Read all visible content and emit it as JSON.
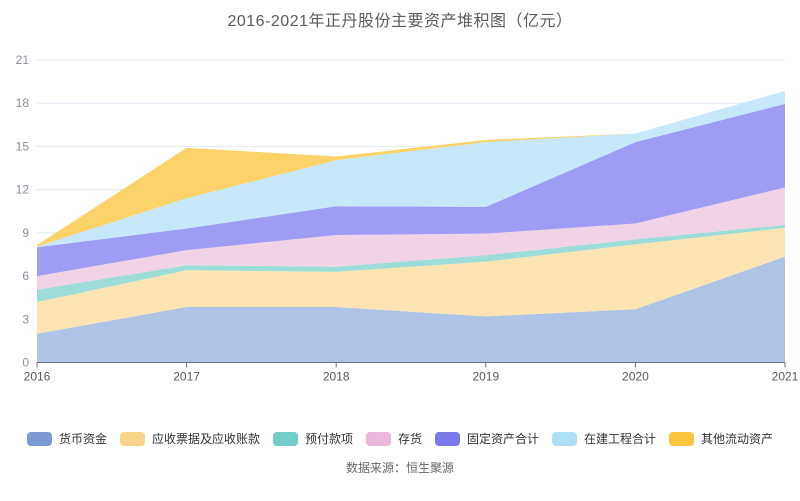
{
  "title": "2016-2021年正丹股份主要资产堆积图（亿元）",
  "source_note": "数据来源：恒生聚源",
  "colors": {
    "axis_line": "#6E7079",
    "grid_line": "#E3E7F3",
    "y_tick_label": "#8A909C",
    "x_tick_label": "#55585F",
    "title_text": "#5B5B5B",
    "legend_text": "#333333",
    "source_text": "#666666"
  },
  "chart_data": {
    "type": "area",
    "stacked": true,
    "title": "2016-2021年正丹股份主要资产堆积图（亿元）",
    "xlabel": "",
    "ylabel": "",
    "x": [
      "2016",
      "2017",
      "2018",
      "2019",
      "2020",
      "2021"
    ],
    "ylim": [
      0,
      21
    ],
    "yticks": [
      0,
      3,
      6,
      9,
      12,
      15,
      18,
      21
    ],
    "grid": true,
    "legend_position": "bottom",
    "series": [
      {
        "name": "货币资金",
        "color": "#7B9BD2",
        "fill": "#AEC3E5",
        "values": [
          2.0,
          3.85,
          3.85,
          3.2,
          3.7,
          7.35
        ]
      },
      {
        "name": "应收票据及应收账款",
        "color": "#F9D48A",
        "fill": "#FCE4B3",
        "values": [
          2.2,
          2.55,
          2.45,
          3.8,
          4.5,
          2.0
        ]
      },
      {
        "name": "预付款项",
        "color": "#72CEC8",
        "fill": "#9DDCD7",
        "values": [
          0.85,
          0.35,
          0.35,
          0.45,
          0.35,
          0.2
        ]
      },
      {
        "name": "存货",
        "color": "#ECB6DD",
        "fill": "#F1D3E6",
        "values": [
          0.95,
          1.05,
          2.2,
          1.5,
          1.1,
          2.6
        ]
      },
      {
        "name": "固定资产合计",
        "color": "#7B79EA",
        "fill": "#9E9DF3",
        "values": [
          2.0,
          1.5,
          2.0,
          1.85,
          5.65,
          5.8
        ]
      },
      {
        "name": "在建工程合计",
        "color": "#AEDFF8",
        "fill": "#C7E8FB",
        "values": [
          0.05,
          2.1,
          3.2,
          4.5,
          0.6,
          0.9
        ]
      },
      {
        "name": "其他流动资产",
        "color": "#FBC43F",
        "fill": "#FBD369",
        "values": [
          0.1,
          3.5,
          0.25,
          0.15,
          0.0,
          0.0
        ]
      }
    ],
    "stack_totals": [
      8.15,
      14.9,
      14.3,
      15.45,
      15.9,
      18.85
    ]
  }
}
